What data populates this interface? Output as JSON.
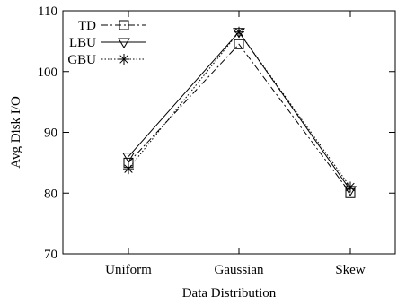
{
  "chart_data": {
    "type": "line",
    "categories": [
      "Uniform",
      "Gaussian",
      "Skew"
    ],
    "xlabel": "Data Distribution",
    "ylabel": "Avg Disk I/O",
    "ylim": [
      70,
      110
    ],
    "yticks": [
      70,
      80,
      90,
      100,
      110
    ],
    "grid": false,
    "legend_position": "top-left",
    "series": [
      {
        "name": "TD",
        "values": [
          85.0,
          104.5,
          80.0
        ],
        "marker": "square",
        "dash": "dash-dot"
      },
      {
        "name": "LBU",
        "values": [
          86.0,
          106.5,
          80.5
        ],
        "marker": "triangle",
        "dash": "solid"
      },
      {
        "name": "GBU",
        "values": [
          84.0,
          106.5,
          81.0
        ],
        "marker": "asterisk",
        "dash": "dotted"
      }
    ]
  }
}
